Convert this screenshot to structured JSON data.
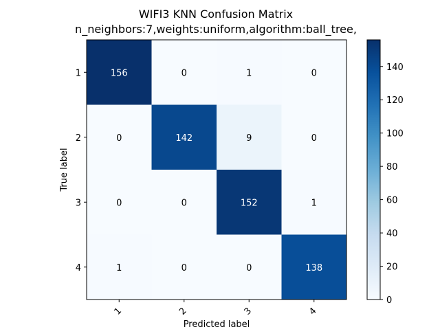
{
  "chart_data": {
    "type": "heatmap",
    "title": "WIFI3 KNN Confusion Matrix",
    "subtitle": "n_neighbors:7,weights:uniform,algorithm:ball_tree,",
    "xlabel": "Predicted label",
    "ylabel": "True label",
    "x_categories": [
      "1",
      "2",
      "3",
      "4"
    ],
    "y_categories": [
      "1",
      "2",
      "3",
      "4"
    ],
    "matrix": [
      [
        156,
        0,
        1,
        0
      ],
      [
        0,
        142,
        9,
        0
      ],
      [
        0,
        0,
        152,
        1
      ],
      [
        1,
        0,
        0,
        138
      ]
    ],
    "colormap": "Blues",
    "value_range": [
      0,
      156
    ],
    "colorbar_ticks": [
      0,
      20,
      40,
      60,
      80,
      100,
      120,
      140
    ],
    "colors": {
      "low": "#f7fbff",
      "high": "#08306b",
      "light_text": "#ffffff",
      "dark_text": "#000000"
    }
  }
}
